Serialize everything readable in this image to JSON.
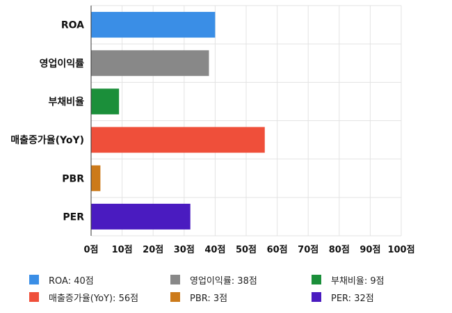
{
  "chart_data": {
    "type": "bar",
    "orientation": "horizontal",
    "categories": [
      "ROA",
      "영업이익률",
      "부채비율",
      "매출증가율(YoY)",
      "PBR",
      "PER"
    ],
    "values": [
      40,
      38,
      9,
      56,
      3,
      32
    ],
    "colors": [
      "#3a8ee6",
      "#888888",
      "#1b8f3a",
      "#ef4f3a",
      "#cc7a1a",
      "#4a1bc0"
    ],
    "xlim": [
      0,
      100
    ],
    "xticks": [
      0,
      10,
      20,
      30,
      40,
      50,
      60,
      70,
      80,
      90,
      100
    ],
    "unit": "점",
    "grid": true,
    "legend_position": "bottom"
  },
  "legend": {
    "items": [
      {
        "text": "ROA: 40점",
        "color": "#3a8ee6"
      },
      {
        "text": "영업이익률: 38점",
        "color": "#888888"
      },
      {
        "text": "부채비율: 9점",
        "color": "#1b8f3a"
      },
      {
        "text": "매출증가율(YoY): 56점",
        "color": "#ef4f3a"
      },
      {
        "text": "PBR: 3점",
        "color": "#cc7a1a"
      },
      {
        "text": "PER: 32점",
        "color": "#4a1bc0"
      }
    ]
  }
}
